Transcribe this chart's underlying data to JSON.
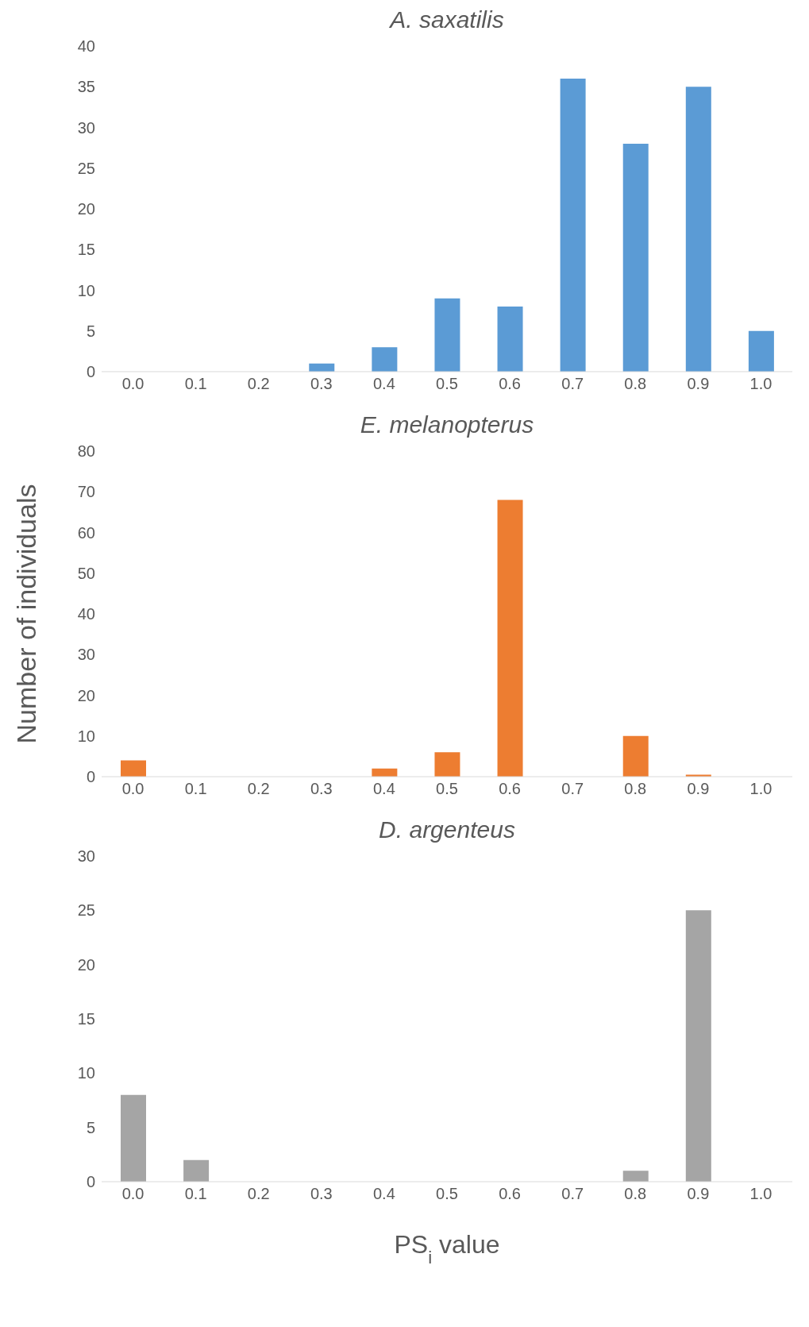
{
  "chart_data": [
    {
      "type": "bar",
      "title": "A. saxatilis",
      "categories": [
        "0.0",
        "0.1",
        "0.2",
        "0.3",
        "0.4",
        "0.5",
        "0.6",
        "0.7",
        "0.8",
        "0.9",
        "1.0"
      ],
      "values": [
        0,
        0,
        0,
        1,
        3,
        9,
        8,
        36,
        28,
        35,
        5
      ],
      "color": "#5b9bd5",
      "ylim": [
        0,
        40
      ],
      "yticks": [
        0,
        5,
        10,
        15,
        20,
        25,
        30,
        35,
        40
      ]
    },
    {
      "type": "bar",
      "title": "E. melanopterus",
      "ylabel": "Number of individuals",
      "categories": [
        "0.0",
        "0.1",
        "0.2",
        "0.3",
        "0.4",
        "0.5",
        "0.6",
        "0.7",
        "0.8",
        "0.9",
        "1.0"
      ],
      "values": [
        4,
        0,
        0,
        0,
        2,
        6,
        68,
        0,
        10,
        0.5,
        0
      ],
      "color": "#ed7d31",
      "ylim": [
        0,
        80
      ],
      "yticks": [
        0,
        10,
        20,
        30,
        40,
        50,
        60,
        70,
        80
      ]
    },
    {
      "type": "bar",
      "title": "D. argenteus",
      "xlabel": "PS$_{i}$ value",
      "categories": [
        "0.0",
        "0.1",
        "0.2",
        "0.3",
        "0.4",
        "0.5",
        "0.6",
        "0.7",
        "0.8",
        "0.9",
        "1.0"
      ],
      "values": [
        8,
        2,
        0,
        0,
        0,
        0,
        0,
        0,
        1,
        25,
        0
      ],
      "color": "#a5a5a5",
      "ylim": [
        0,
        30
      ],
      "yticks": [
        0,
        5,
        10,
        15,
        20,
        25,
        30
      ]
    }
  ]
}
